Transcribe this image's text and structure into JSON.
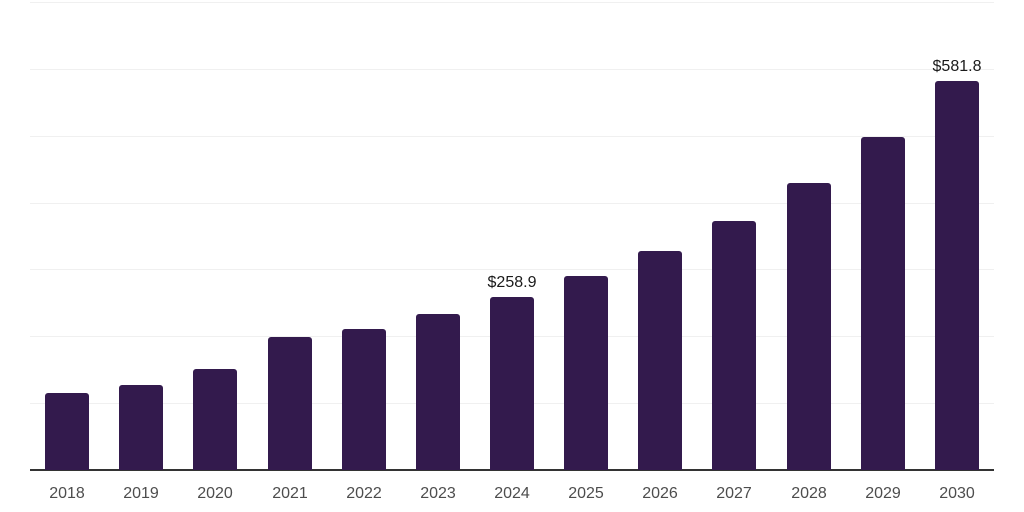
{
  "chart_data": {
    "type": "bar",
    "title": "",
    "xlabel": "",
    "ylabel": "",
    "categories": [
      "2018",
      "2019",
      "2020",
      "2021",
      "2022",
      "2023",
      "2024",
      "2025",
      "2026",
      "2027",
      "2028",
      "2029",
      "2030"
    ],
    "values": [
      115.0,
      127.0,
      151.0,
      199.0,
      211.0,
      233.0,
      258.9,
      290.0,
      327.0,
      372.0,
      429.0,
      498.0,
      581.8
    ],
    "value_labels": [
      "",
      "",
      "",
      "",
      "",
      "",
      "$258.9",
      "",
      "",
      "",
      "",
      "",
      "$581.8"
    ],
    "ylim": [
      0,
      700
    ],
    "ytick_interval": 100,
    "grid": true,
    "legend": false,
    "colors": {
      "bar": "#331a4d",
      "gridline": "#f0f0f0",
      "axis_line": "#333333",
      "tick_label": "#4d4d4d",
      "value_label": "#1a1a1a",
      "background": "#ffffff"
    }
  }
}
